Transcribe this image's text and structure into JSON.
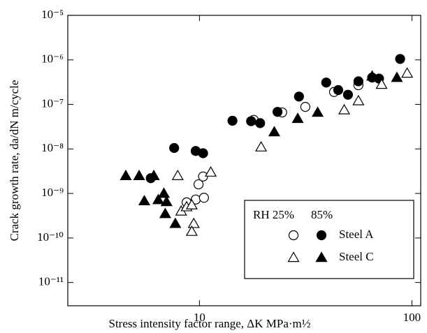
{
  "chart_data": {
    "type": "scatter",
    "xlabel": "Stress intensity factor range, ΔK  MPa·m½",
    "ylabel": "Crack growth rate, da/dN m/cycle",
    "xscale": "log",
    "yscale": "log",
    "xlim": [
      2.4,
      110
    ],
    "ylim": [
      3e-12,
      1e-05
    ],
    "xticks": [
      10,
      100
    ],
    "yticks": [
      {
        "value": 1e-05,
        "label": "10⁻⁵"
      },
      {
        "value": 1e-06,
        "label": "10⁻⁶"
      },
      {
        "value": 1e-07,
        "label": "10⁻⁷"
      },
      {
        "value": 1e-08,
        "label": "10⁻⁸"
      },
      {
        "value": 1e-09,
        "label": "10⁻⁹"
      },
      {
        "value": 1e-10,
        "label": "10⁻¹⁰"
      },
      {
        "value": 1e-11,
        "label": "10⁻¹¹"
      }
    ],
    "legend": {
      "columns": [
        "RH 25%",
        "85%"
      ],
      "rows": [
        "Steel A",
        "Steel C"
      ],
      "position": "lower right"
    },
    "series": [
      {
        "marker": "circle",
        "filled": false,
        "color": "#000000",
        "x": [
          8.7,
          9.6,
          10.5,
          9.9,
          10.4,
          18,
          24.5,
          31.5,
          43,
          56
        ],
        "values": [
          6.3e-10,
          7.3e-10,
          8e-10,
          1.6e-09,
          2.4e-09,
          4.5e-08,
          6.6e-08,
          8.8e-08,
          1.9e-07,
          2.7e-07
        ]
      },
      {
        "marker": "circle",
        "filled": true,
        "color": "#000000",
        "x": [
          5.9,
          7.6,
          9.6,
          10.4,
          14.3,
          17.5,
          19.3,
          23.3,
          29.4,
          39.5,
          45,
          50,
          56,
          65,
          70,
          88
        ],
        "values": [
          2.2e-09,
          1.05e-08,
          9e-09,
          8e-09,
          4.3e-08,
          4.2e-08,
          3.8e-08,
          6.8e-08,
          1.5e-07,
          3.1e-07,
          2.1e-07,
          1.65e-07,
          3.3e-07,
          4e-07,
          3.8e-07,
          1.05e-06
        ]
      },
      {
        "marker": "triangle",
        "filled": false,
        "color": "#000000",
        "x": [
          7.9,
          8.2,
          8.7,
          9.2,
          9.4,
          9.2,
          11.3,
          19.5,
          48,
          56,
          72,
          95
        ],
        "values": [
          2.5e-09,
          4e-10,
          5e-10,
          5.5e-10,
          2.1e-10,
          1.4e-10,
          3e-09,
          1.1e-08,
          7.5e-08,
          1.2e-07,
          2.8e-07,
          5e-07
        ]
      },
      {
        "marker": "triangle",
        "filled": true,
        "color": "#000000",
        "x": [
          4.5,
          5.2,
          5.5,
          6.1,
          6.4,
          6.8,
          7.0,
          6.9,
          7.7,
          22.5,
          29,
          36,
          65,
          85
        ],
        "values": [
          2.5e-09,
          2.5e-09,
          6.8e-10,
          2.5e-09,
          7.2e-10,
          1e-09,
          6.5e-10,
          3.5e-10,
          2.1e-10,
          2.4e-08,
          4.8e-08,
          6.6e-08,
          4.3e-07,
          4e-07
        ]
      }
    ]
  }
}
